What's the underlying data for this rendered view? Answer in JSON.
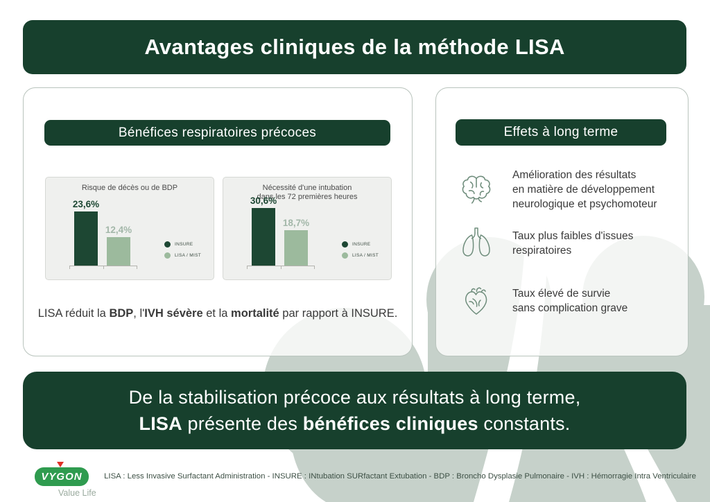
{
  "colors": {
    "dark_green": "#17402d",
    "bar_dark": "#1d4733",
    "bar_light": "#9cba9d",
    "sage_watermark": "#c6d1ca",
    "vygon_green": "#2f9b4f",
    "vygon_red": "#e03127"
  },
  "header": {
    "title": "Avantages cliniques de la méthode LISA"
  },
  "left_panel": {
    "header": "Bénéfices respiratoires précoces",
    "summary_parts": [
      {
        "t": "LISA réduit la ",
        "b": false
      },
      {
        "t": "BDP",
        "b": true
      },
      {
        "t": ", l'",
        "b": false
      },
      {
        "t": "IVH sévère",
        "b": true
      },
      {
        "t": " et la ",
        "b": false
      },
      {
        "t": "mortalité",
        "b": true
      },
      {
        "t": " par rapport à INSURE.",
        "b": false
      }
    ]
  },
  "chart_data": [
    {
      "type": "bar",
      "title": "Risque de décès ou de BDP",
      "categories": [
        "INSURE",
        "LISA / MIST"
      ],
      "values": [
        23.6,
        12.4
      ],
      "labels": [
        "23,6%",
        "12,4%"
      ],
      "colors": [
        "#1d4733",
        "#9cba9d"
      ],
      "label_colors": [
        "#1d4733",
        "#a3b7a9"
      ],
      "ylim": [
        0,
        28
      ],
      "legend": [
        "INSURE",
        "LISA / MIST"
      ],
      "legend_position": "right",
      "grid": false
    },
    {
      "type": "bar",
      "title": "Nécessité d'une intubation\ndans les 72 premières heures",
      "categories": [
        "INSURE",
        "LISA / MIST"
      ],
      "values": [
        30.6,
        18.7
      ],
      "labels": [
        "30,6%",
        "18,7%"
      ],
      "colors": [
        "#1d4733",
        "#9cba9d"
      ],
      "label_colors": [
        "#1d4733",
        "#a3b7a9"
      ],
      "ylim": [
        0,
        34
      ],
      "legend": [
        "INSURE",
        "LISA / MIST"
      ],
      "legend_position": "right",
      "grid": false
    }
  ],
  "right_panel": {
    "header": "Effets à long terme",
    "items": [
      {
        "icon": "brain-icon",
        "text": "Amélioration des résultats\nen matière de développement\nneurologique et psychomoteur"
      },
      {
        "icon": "lungs-icon",
        "text": "Taux plus faibles d'issues\nrespiratoires"
      },
      {
        "icon": "heart-icon",
        "text": "Taux élevé de survie\nsans complication grave"
      }
    ]
  },
  "bottom_banner": {
    "line1": "De la stabilisation précoce aux résultats à long terme,",
    "line2_parts": [
      {
        "t": "LISA",
        "b": true
      },
      {
        "t": " présente des ",
        "b": false
      },
      {
        "t": "bénéfices cliniques",
        "b": true
      },
      {
        "t": " constants.",
        "b": false
      }
    ]
  },
  "footer": {
    "logo": "VYGON",
    "tagline": "Value Life",
    "legend": "LISA : Less Invasive Surfactant Administration - INSURE : INtubation SURfactant Extubation - BDP : Broncho Dysplasie Pulmonaire - IVH : Hémorragie Intra Ventriculaire"
  }
}
